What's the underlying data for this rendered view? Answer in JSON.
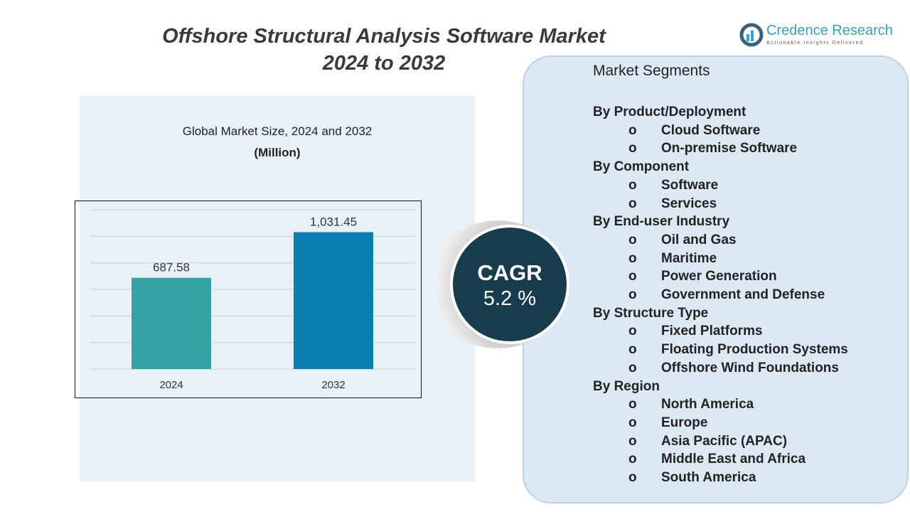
{
  "title_line1": "Offshore Structural Analysis Software Market",
  "title_line2": "2024 to 2032",
  "logo": {
    "name": "Credence Research",
    "tagline": "Actionable Insights Delivered"
  },
  "chart_data": {
    "type": "bar",
    "title": "Global Market Size, 2024 and 2032",
    "subtitle": "(Million)",
    "categories": [
      "2024",
      "2032"
    ],
    "values": [
      687.58,
      1031.45
    ],
    "value_labels": [
      "687.58",
      "1,031.45"
    ],
    "colors": [
      "#34a3a3",
      "#0a7fb0"
    ],
    "ylim": [
      0,
      1200
    ],
    "grid": true,
    "grid_step": 200
  },
  "cagr": {
    "label": "CAGR",
    "value": "5.2 %"
  },
  "segments": {
    "title": "Market Segments",
    "bullet": "o",
    "groups": [
      {
        "heading": "By Product/Deployment",
        "items": [
          "Cloud Software",
          "On-premise Software"
        ]
      },
      {
        "heading": "By Component",
        "items": [
          "Software",
          "Services"
        ]
      },
      {
        "heading": "By End-user Industry",
        "items": [
          "Oil and Gas",
          "Maritime",
          "Power Generation",
          "Government and Defense"
        ]
      },
      {
        "heading": "By Structure Type",
        "items": [
          "Fixed Platforms",
          "Floating Production Systems",
          "Offshore Wind Foundations"
        ]
      },
      {
        "heading": "By Region",
        "items": [
          "North America",
          "Europe",
          "Asia Pacific (APAC)",
          "Middle East and Africa",
          "South America"
        ]
      }
    ]
  }
}
